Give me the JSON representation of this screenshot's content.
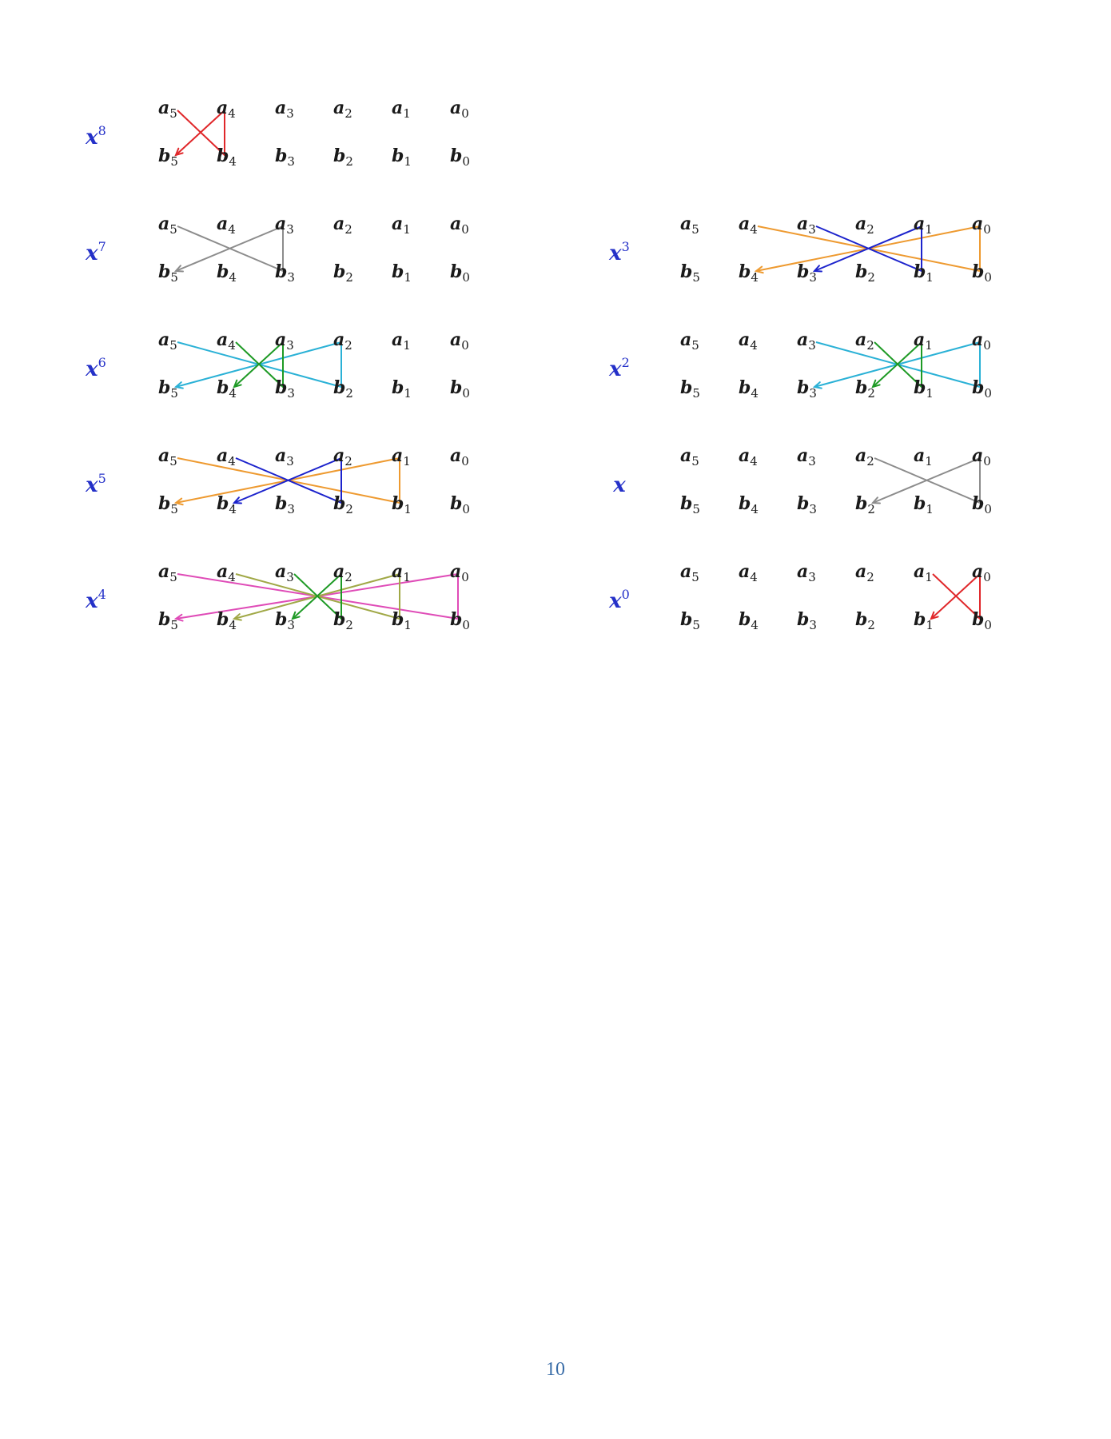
{
  "page": {
    "number": "10"
  },
  "colors": {
    "red": "#e0272a",
    "gray": "#8c8c8c",
    "green": "#1e9a25",
    "cyan": "#2ab1d6",
    "blue": "#1c23cc",
    "orange": "#ee9a30",
    "magenta": "#df4bb7",
    "olive": "#a0a846",
    "power_label": "#2430c8",
    "text": "#1a1a1a"
  },
  "diagrams": [
    {
      "name": "x8",
      "base": "x",
      "exp": "8",
      "a_labels": [
        {
          "v": "a",
          "s": "5"
        },
        {
          "v": "a",
          "s": "4"
        },
        {
          "v": "a",
          "s": "3"
        },
        {
          "v": "a",
          "s": "2"
        },
        {
          "v": "a",
          "s": "1"
        },
        {
          "v": "a",
          "s": "0"
        }
      ],
      "b_labels": [
        {
          "v": "b",
          "s": "5"
        },
        {
          "v": "b",
          "s": "4"
        },
        {
          "v": "b",
          "s": "3"
        },
        {
          "v": "b",
          "s": "2"
        },
        {
          "v": "b",
          "s": "1"
        },
        {
          "v": "b",
          "s": "0"
        }
      ],
      "paths": [
        {
          "color": "red",
          "from": 5,
          "to": 4
        }
      ]
    },
    {
      "name": "x7",
      "base": "x",
      "exp": "7",
      "a_labels": [
        {
          "v": "a",
          "s": "5"
        },
        {
          "v": "a",
          "s": "4"
        },
        {
          "v": "a",
          "s": "3"
        },
        {
          "v": "a",
          "s": "2"
        },
        {
          "v": "a",
          "s": "1"
        },
        {
          "v": "a",
          "s": "0"
        }
      ],
      "b_labels": [
        {
          "v": "b",
          "s": "5"
        },
        {
          "v": "b",
          "s": "4"
        },
        {
          "v": "b",
          "s": "3"
        },
        {
          "v": "b",
          "s": "2"
        },
        {
          "v": "b",
          "s": "1"
        },
        {
          "v": "b",
          "s": "0"
        }
      ],
      "paths": [
        {
          "color": "gray",
          "from": 5,
          "to": 3
        }
      ]
    },
    {
      "name": "x6",
      "base": "x",
      "exp": "6",
      "a_labels": [
        {
          "v": "a",
          "s": "5"
        },
        {
          "v": "a",
          "s": "4"
        },
        {
          "v": "a",
          "s": "3"
        },
        {
          "v": "a",
          "s": "2"
        },
        {
          "v": "a",
          "s": "1"
        },
        {
          "v": "a",
          "s": "0"
        }
      ],
      "b_labels": [
        {
          "v": "b",
          "s": "5"
        },
        {
          "v": "b",
          "s": "4"
        },
        {
          "v": "b",
          "s": "3"
        },
        {
          "v": "b",
          "s": "2"
        },
        {
          "v": "b",
          "s": "1"
        },
        {
          "v": "b",
          "s": "0"
        }
      ],
      "paths": [
        {
          "color": "cyan",
          "from": 5,
          "to": 2
        },
        {
          "color": "green",
          "from": 4,
          "to": 3
        }
      ]
    },
    {
      "name": "x5",
      "base": "x",
      "exp": "5",
      "a_labels": [
        {
          "v": "a",
          "s": "5"
        },
        {
          "v": "a",
          "s": "4"
        },
        {
          "v": "a",
          "s": "3"
        },
        {
          "v": "a",
          "s": "2"
        },
        {
          "v": "a",
          "s": "1"
        },
        {
          "v": "a",
          "s": "0"
        }
      ],
      "b_labels": [
        {
          "v": "b",
          "s": "5"
        },
        {
          "v": "b",
          "s": "4"
        },
        {
          "v": "b",
          "s": "3"
        },
        {
          "v": "b",
          "s": "2"
        },
        {
          "v": "b",
          "s": "1"
        },
        {
          "v": "b",
          "s": "0"
        }
      ],
      "paths": [
        {
          "color": "orange",
          "from": 5,
          "to": 1
        },
        {
          "color": "blue",
          "from": 4,
          "to": 2
        }
      ]
    },
    {
      "name": "x4",
      "base": "x",
      "exp": "4",
      "a_labels": [
        {
          "v": "a",
          "s": "5"
        },
        {
          "v": "a",
          "s": "4"
        },
        {
          "v": "a",
          "s": "3"
        },
        {
          "v": "a",
          "s": "2"
        },
        {
          "v": "a",
          "s": "1"
        },
        {
          "v": "a",
          "s": "0"
        }
      ],
      "b_labels": [
        {
          "v": "b",
          "s": "5"
        },
        {
          "v": "b",
          "s": "4"
        },
        {
          "v": "b",
          "s": "3"
        },
        {
          "v": "b",
          "s": "2"
        },
        {
          "v": "b",
          "s": "1"
        },
        {
          "v": "b",
          "s": "0"
        }
      ],
      "paths": [
        {
          "color": "magenta",
          "from": 5,
          "to": 0
        },
        {
          "color": "olive",
          "from": 4,
          "to": 1
        },
        {
          "color": "green",
          "from": 3,
          "to": 2
        }
      ]
    },
    {
      "name": "x3",
      "base": "x",
      "exp": "3",
      "a_labels": [
        {
          "v": "a",
          "s": "5"
        },
        {
          "v": "a",
          "s": "4"
        },
        {
          "v": "a",
          "s": "3"
        },
        {
          "v": "a",
          "s": "2"
        },
        {
          "v": "a",
          "s": "1"
        },
        {
          "v": "a",
          "s": "0"
        }
      ],
      "b_labels": [
        {
          "v": "b",
          "s": "5"
        },
        {
          "v": "b",
          "s": "4"
        },
        {
          "v": "b",
          "s": "3"
        },
        {
          "v": "b",
          "s": "2"
        },
        {
          "v": "b",
          "s": "1"
        },
        {
          "v": "b",
          "s": "0"
        }
      ],
      "paths": [
        {
          "color": "orange",
          "from": 4,
          "to": 0
        },
        {
          "color": "blue",
          "from": 3,
          "to": 1
        }
      ]
    },
    {
      "name": "x2",
      "base": "x",
      "exp": "2",
      "a_labels": [
        {
          "v": "a",
          "s": "5"
        },
        {
          "v": "a",
          "s": "4"
        },
        {
          "v": "a",
          "s": "3"
        },
        {
          "v": "a",
          "s": "2"
        },
        {
          "v": "a",
          "s": "1"
        },
        {
          "v": "a",
          "s": "0"
        }
      ],
      "b_labels": [
        {
          "v": "b",
          "s": "5"
        },
        {
          "v": "b",
          "s": "4"
        },
        {
          "v": "b",
          "s": "3"
        },
        {
          "v": "b",
          "s": "2"
        },
        {
          "v": "b",
          "s": "1"
        },
        {
          "v": "b",
          "s": "0"
        }
      ],
      "paths": [
        {
          "color": "cyan",
          "from": 3,
          "to": 0
        },
        {
          "color": "green",
          "from": 2,
          "to": 1
        }
      ]
    },
    {
      "name": "x1",
      "base": "x",
      "exp": "",
      "a_labels": [
        {
          "v": "a",
          "s": "5"
        },
        {
          "v": "a",
          "s": "4"
        },
        {
          "v": "a",
          "s": "3"
        },
        {
          "v": "a",
          "s": "2"
        },
        {
          "v": "a",
          "s": "1"
        },
        {
          "v": "a",
          "s": "0"
        }
      ],
      "b_labels": [
        {
          "v": "b",
          "s": "5"
        },
        {
          "v": "b",
          "s": "4"
        },
        {
          "v": "b",
          "s": "3"
        },
        {
          "v": "b",
          "s": "2"
        },
        {
          "v": "b",
          "s": "1"
        },
        {
          "v": "b",
          "s": "0"
        }
      ],
      "paths": [
        {
          "color": "gray",
          "from": 2,
          "to": 0
        }
      ]
    },
    {
      "name": "x0",
      "base": "x",
      "exp": "0",
      "a_labels": [
        {
          "v": "a",
          "s": "5"
        },
        {
          "v": "a",
          "s": "4"
        },
        {
          "v": "a",
          "s": "3"
        },
        {
          "v": "a",
          "s": "2"
        },
        {
          "v": "a",
          "s": "1"
        },
        {
          "v": "a",
          "s": "0"
        }
      ],
      "b_labels": [
        {
          "v": "b",
          "s": "5"
        },
        {
          "v": "b",
          "s": "4"
        },
        {
          "v": "b",
          "s": "3"
        },
        {
          "v": "b",
          "s": "2"
        },
        {
          "v": "b",
          "s": "1"
        },
        {
          "v": "b",
          "s": "0"
        }
      ],
      "paths": [
        {
          "color": "red",
          "from": 1,
          "to": 0
        }
      ]
    }
  ]
}
